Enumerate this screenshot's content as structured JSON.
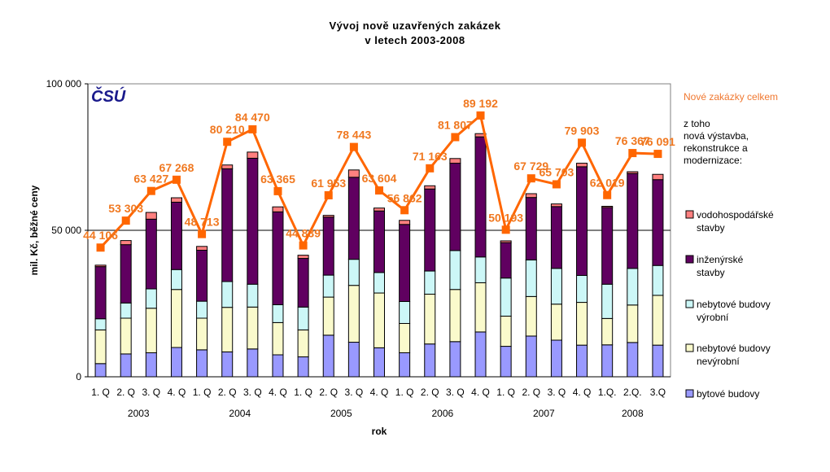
{
  "chart_data": {
    "type": "bar",
    "subtype": "stacked-bar-with-line",
    "title": [
      "Vývoj nově uzavřených zakázek",
      "v letech 2003-2008"
    ],
    "xlabel": "rok",
    "ylabel": "mil. Kč, běžné ceny",
    "ylim": [
      0,
      100000
    ],
    "yticks": [
      0,
      50000,
      100000
    ],
    "ytick_labels": [
      "0",
      "50 000",
      "100 000"
    ],
    "gridlines": [
      50000
    ],
    "logo": "ČSÚ",
    "categories": [
      "1. Q",
      "2. Q",
      "3. Q",
      "4. Q",
      "1. Q",
      "2. Q",
      "3. Q",
      "4. Q",
      "1. Q",
      "2. Q",
      "3. Q",
      "4. Q",
      "1. Q",
      "2. Q",
      "3. Q",
      "4. Q",
      "1. Q",
      "2. Q",
      "3. Q",
      "4. Q",
      "1.Q.",
      "2.Q.",
      "3.Q"
    ],
    "years": [
      {
        "label": "2003",
        "start": 0,
        "end": 3
      },
      {
        "label": "2004",
        "start": 4,
        "end": 7
      },
      {
        "label": "2005",
        "start": 8,
        "end": 11
      },
      {
        "label": "2006",
        "start": 12,
        "end": 15
      },
      {
        "label": "2007",
        "start": 16,
        "end": 19
      },
      {
        "label": "2008",
        "start": 20,
        "end": 22
      }
    ],
    "series": [
      {
        "name": "bytové budovy",
        "color": "#9999ff",
        "values": [
          4500,
          7800,
          8200,
          10000,
          9200,
          8500,
          9500,
          7500,
          6800,
          14200,
          11800,
          9900,
          8200,
          11200,
          12000,
          15300,
          10400,
          13900,
          12500,
          10800,
          10900,
          11700,
          10800
        ]
      },
      {
        "name": "nebytové budovy nevýrobní",
        "color": "#fafacc",
        "values": [
          11500,
          12200,
          15200,
          19800,
          10800,
          15200,
          14300,
          11000,
          9200,
          13000,
          19400,
          18700,
          10000,
          17000,
          17800,
          16800,
          10300,
          13500,
          12300,
          14600,
          9000,
          12800,
          17000
        ]
      },
      {
        "name": "nebytové budovy výrobní",
        "color": "#ccf7f7",
        "values": [
          3800,
          5200,
          6600,
          6800,
          5800,
          8800,
          7800,
          6100,
          7800,
          7500,
          8900,
          7000,
          7500,
          7900,
          13300,
          8800,
          13000,
          12500,
          12200,
          9200,
          11700,
          12500,
          10200
        ]
      },
      {
        "name": "inženýrské stavby",
        "color": "#600060",
        "values": [
          17800,
          19900,
          23800,
          23000,
          17400,
          38500,
          43000,
          31700,
          16600,
          19800,
          28000,
          21000,
          26300,
          28000,
          29800,
          41000,
          12100,
          21300,
          21100,
          37100,
          26200,
          32400,
          29300
        ]
      },
      {
        "name": "vodohospodářské stavby",
        "color": "#ff8080",
        "values": [
          500,
          1400,
          2300,
          1500,
          1300,
          1300,
          2100,
          1700,
          1100,
          600,
          2500,
          1000,
          1400,
          1100,
          1600,
          1100,
          600,
          1300,
          900,
          1200,
          400,
          600,
          1800
        ]
      }
    ],
    "line": {
      "name": "Nové zakázky celkem",
      "color": "#ff6600",
      "values": [
        44106,
        53303,
        63427,
        67268,
        48713,
        80210,
        84470,
        63365,
        44839,
        61953,
        78443,
        63604,
        56862,
        71163,
        81807,
        89192,
        50193,
        67729,
        65703,
        79903,
        62019,
        76367,
        76091
      ],
      "labels": [
        "44 106",
        "53 303",
        "63 427",
        "67 268",
        "48 713",
        "80 210",
        "84 470",
        "63 365",
        "44 839",
        "61 953",
        "78 443",
        "63 604",
        "56 862",
        "71 163",
        "81 807",
        "89 192",
        "50 193",
        "67 729",
        "65 703",
        "79 903",
        "62 019",
        "76 367",
        "76 091"
      ]
    },
    "legend": {
      "placement": "right",
      "line_label": "Nové zakázky celkem",
      "subheading": [
        "z toho",
        "nová výstavba,",
        "rekonstrukce a",
        "modernizace:"
      ],
      "items": [
        {
          "lines": [
            "vodohospodářské",
            "stavby"
          ],
          "series": 4
        },
        {
          "lines": [
            "inženýrské",
            "stavby"
          ],
          "series": 3
        },
        {
          "lines": [
            "nebytové budovy",
            "výrobní"
          ],
          "series": 2
        },
        {
          "lines": [
            "nebytové budovy",
            "nevýrobní"
          ],
          "series": 1
        },
        {
          "lines": [
            "bytové budovy"
          ],
          "series": 0
        }
      ]
    }
  }
}
